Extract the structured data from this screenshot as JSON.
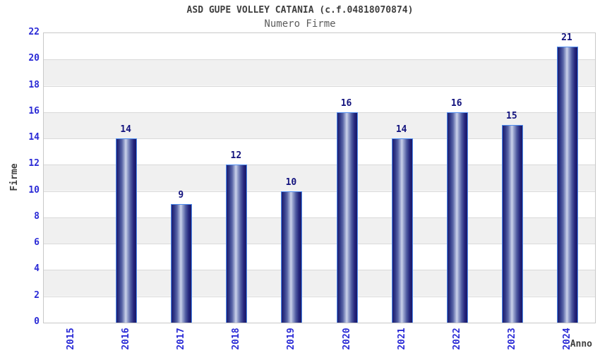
{
  "chart_data": {
    "type": "bar",
    "title": "ASD GUPE VOLLEY CATANIA (c.f.04818070874)",
    "subtitle": "Numero Firme",
    "xlabel": "Anno",
    "ylabel": "Firme",
    "categories": [
      "2015",
      "2016",
      "2017",
      "2018",
      "2019",
      "2020",
      "2021",
      "2022",
      "2023",
      "2024"
    ],
    "values": [
      0,
      14,
      9,
      12,
      10,
      16,
      14,
      16,
      15,
      21
    ],
    "ylim": [
      0,
      22
    ],
    "ytick_step": 2,
    "yticks": [
      0,
      2,
      4,
      6,
      8,
      10,
      12,
      14,
      16,
      18,
      20,
      22
    ],
    "grid": true,
    "legend": "none",
    "colors": {
      "bar_dark": "#1d1d72",
      "bar_light": "#ccd3ea",
      "bar_border": "#4f8df0",
      "axis_tick_label": "#2a2ad6",
      "bar_value_label": "#13137e",
      "band_gray": "#f0f0f0",
      "band_white": "#ffffff",
      "plot_border": "#c8c8c8",
      "gridline": "#d9d9d9",
      "title_text": "#3f3f3f",
      "subtitle_text": "#5c5c5c"
    }
  }
}
